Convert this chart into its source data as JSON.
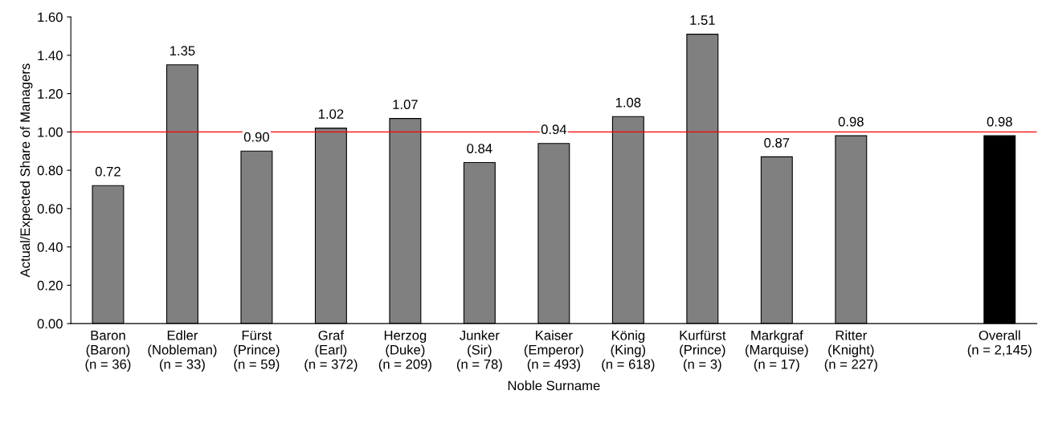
{
  "chart_data": {
    "type": "bar",
    "xlabel": "Noble Surname",
    "ylabel": "Actual/Expected Share of Managers",
    "categories": [
      "Baron\n(Baron)\n(n = 36)",
      "Edler\n(Nobleman)\n(n = 33)",
      "Fürst\n(Prince)\n(n = 59)",
      "Graf\n(Earl)\n(n = 372)",
      "Herzog\n(Duke)\n(n = 209)",
      "Junker\n(Sir)\n(n = 78)",
      "Kaiser\n(Emperor)\n(n = 493)",
      "König\n(King)\n(n = 618)",
      "Kurfürst\n(Prince)\n(n = 3)",
      "Markgraf\n(Marquise)\n(n = 17)",
      "Ritter\n(Knight)\n(n = 227)",
      null,
      "Overall\n(n = 2,145)"
    ],
    "values": [
      0.72,
      1.35,
      0.9,
      1.02,
      1.07,
      0.84,
      0.94,
      1.08,
      1.51,
      0.87,
      0.98,
      null,
      0.98
    ],
    "value_labels": [
      "0.72",
      "1.35",
      "0.90",
      "1.02",
      "1.07",
      "0.84",
      "0.94",
      "1.08",
      "1.51",
      "0.87",
      "0.98",
      null,
      "0.98"
    ],
    "colors": [
      "#808080",
      "#808080",
      "#808080",
      "#808080",
      "#808080",
      "#808080",
      "#808080",
      "#808080",
      "#808080",
      "#808080",
      "#808080",
      "#808080",
      "#000000"
    ],
    "ylim": [
      0,
      1.6
    ],
    "yticks": [
      {
        "value": 0,
        "label": "0.00"
      },
      {
        "value": 0.2,
        "label": "0.20"
      },
      {
        "value": 0.4,
        "label": "0.40"
      },
      {
        "value": 0.6,
        "label": "0.60"
      },
      {
        "value": 0.8,
        "label": "0.80"
      },
      {
        "value": 1.0,
        "label": "1.00"
      },
      {
        "value": 1.2,
        "label": "1.20"
      },
      {
        "value": 1.4,
        "label": "1.40"
      },
      {
        "value": 1.6,
        "label": "1.60"
      }
    ],
    "ref_lines": [
      {
        "axis": "y",
        "value": 1.0,
        "color": "#ff0000"
      }
    ],
    "grid": false
  }
}
